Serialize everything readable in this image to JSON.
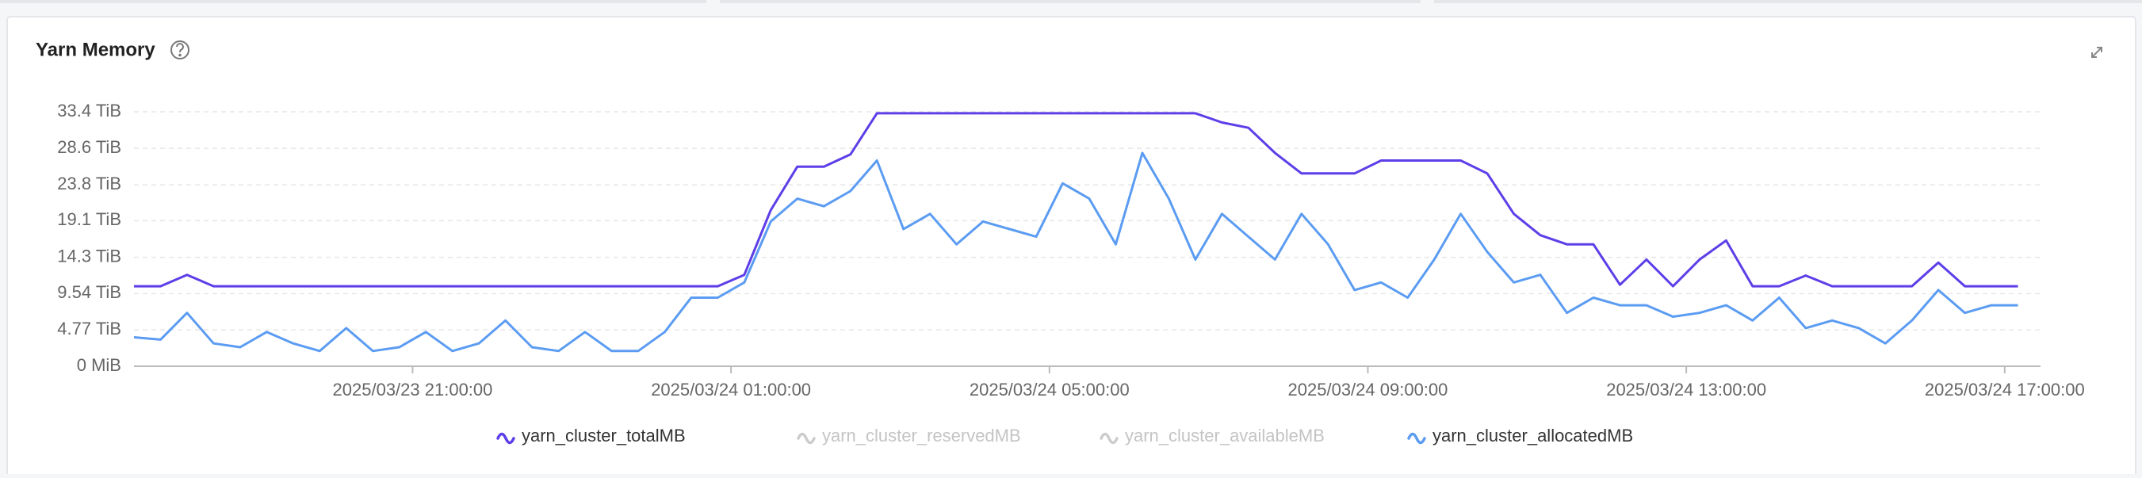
{
  "chart_data": {
    "type": "line",
    "title": "Yarn Memory",
    "x": [
      "2025/03/23 17:30:00",
      "2025/03/23 17:50:00",
      "2025/03/23 18:10:00",
      "2025/03/23 18:30:00",
      "2025/03/23 18:50:00",
      "2025/03/23 19:10:00",
      "2025/03/23 19:30:00",
      "2025/03/23 19:50:00",
      "2025/03/23 20:10:00",
      "2025/03/23 20:30:00",
      "2025/03/23 20:50:00",
      "2025/03/23 21:10:00",
      "2025/03/23 21:30:00",
      "2025/03/23 21:50:00",
      "2025/03/23 22:10:00",
      "2025/03/23 22:30:00",
      "2025/03/23 22:50:00",
      "2025/03/23 23:10:00",
      "2025/03/23 23:30:00",
      "2025/03/23 23:50:00",
      "2025/03/24 00:10:00",
      "2025/03/24 00:30:00",
      "2025/03/24 00:50:00",
      "2025/03/24 01:10:00",
      "2025/03/24 01:30:00",
      "2025/03/24 01:50:00",
      "2025/03/24 02:10:00",
      "2025/03/24 02:30:00",
      "2025/03/24 02:50:00",
      "2025/03/24 03:10:00",
      "2025/03/24 03:30:00",
      "2025/03/24 03:50:00",
      "2025/03/24 04:10:00",
      "2025/03/24 04:30:00",
      "2025/03/24 04:50:00",
      "2025/03/24 05:10:00",
      "2025/03/24 05:30:00",
      "2025/03/24 05:50:00",
      "2025/03/24 06:10:00",
      "2025/03/24 06:30:00",
      "2025/03/24 06:50:00",
      "2025/03/24 07:10:00",
      "2025/03/24 07:30:00",
      "2025/03/24 07:50:00",
      "2025/03/24 08:10:00",
      "2025/03/24 08:30:00",
      "2025/03/24 08:50:00",
      "2025/03/24 09:10:00",
      "2025/03/24 09:30:00",
      "2025/03/24 09:50:00",
      "2025/03/24 10:10:00",
      "2025/03/24 10:30:00",
      "2025/03/24 10:50:00",
      "2025/03/24 11:10:00",
      "2025/03/24 11:30:00",
      "2025/03/24 11:50:00",
      "2025/03/24 12:10:00",
      "2025/03/24 12:30:00",
      "2025/03/24 12:50:00",
      "2025/03/24 13:10:00",
      "2025/03/24 13:30:00",
      "2025/03/24 13:50:00",
      "2025/03/24 14:10:00",
      "2025/03/24 14:30:00",
      "2025/03/24 14:50:00",
      "2025/03/24 15:10:00",
      "2025/03/24 15:30:00",
      "2025/03/24 15:50:00",
      "2025/03/24 16:10:00",
      "2025/03/24 16:30:00",
      "2025/03/24 16:50:00",
      "2025/03/24 17:10:00"
    ],
    "xlim": [
      "2025/03/23 17:30:00",
      "2025/03/24 17:27:00"
    ],
    "xticks": [
      "2025/03/23 21:00:00",
      "2025/03/24 01:00:00",
      "2025/03/24 05:00:00",
      "2025/03/24 09:00:00",
      "2025/03/24 13:00:00",
      "2025/03/24 17:00:00"
    ],
    "ylim": [
      0,
      33.4
    ],
    "yticks": [
      {
        "value": 0,
        "label": "0 MiB"
      },
      {
        "value": 4.77,
        "label": "4.77 TiB"
      },
      {
        "value": 9.54,
        "label": "9.54 TiB"
      },
      {
        "value": 14.3,
        "label": "14.3 TiB"
      },
      {
        "value": 19.1,
        "label": "19.1 TiB"
      },
      {
        "value": 23.8,
        "label": "23.8 TiB"
      },
      {
        "value": 28.6,
        "label": "28.6 TiB"
      },
      {
        "value": 33.4,
        "label": "33.4 TiB"
      }
    ],
    "grid": true,
    "series": [
      {
        "name": "yarn_cluster_totalMB",
        "color": "#5d3ee8",
        "visible": true,
        "values": [
          10.5,
          10.5,
          12,
          10.5,
          10.5,
          10.5,
          10.5,
          10.5,
          10.5,
          10.5,
          10.5,
          10.5,
          10.5,
          10.5,
          10.5,
          10.5,
          10.5,
          10.5,
          10.5,
          10.5,
          10.5,
          10.5,
          10.5,
          12,
          20.5,
          26.2,
          26.2,
          27.8,
          33.2,
          33.2,
          33.2,
          33.2,
          33.2,
          33.2,
          33.2,
          33.2,
          33.2,
          33.2,
          33.2,
          33.2,
          33.2,
          32,
          31.3,
          28,
          25.3,
          25.3,
          25.3,
          27,
          27,
          27,
          27,
          25.3,
          20,
          17.2,
          16,
          16,
          10.7,
          14,
          10.5,
          14,
          16.5,
          10.5,
          10.5,
          11.9,
          10.5,
          10.5,
          10.5,
          10.5,
          13.6,
          10.5,
          10.5,
          10.5
        ]
      },
      {
        "name": "yarn_cluster_reservedMB",
        "color": "#cccccc",
        "visible": false,
        "values": [
          null,
          null,
          null,
          null,
          null,
          null,
          null,
          null,
          null,
          null,
          null,
          null,
          null,
          null,
          null,
          null,
          null,
          null,
          null,
          null,
          null,
          null,
          null,
          null,
          null,
          null,
          null,
          null,
          null,
          null,
          null,
          null,
          null,
          null,
          null,
          null,
          null,
          null,
          null,
          null,
          null,
          null,
          null,
          null,
          null,
          null,
          null,
          null,
          null,
          null,
          null,
          null,
          null,
          null,
          null,
          null,
          null,
          null,
          null,
          null,
          null,
          null,
          null,
          null,
          null,
          null,
          null,
          null,
          null,
          null,
          null,
          null
        ]
      },
      {
        "name": "yarn_cluster_availableMB",
        "color": "#cccccc",
        "visible": false,
        "values": [
          null,
          null,
          null,
          null,
          null,
          null,
          null,
          null,
          null,
          null,
          null,
          null,
          null,
          null,
          null,
          null,
          null,
          null,
          null,
          null,
          null,
          null,
          null,
          null,
          null,
          null,
          null,
          null,
          null,
          null,
          null,
          null,
          null,
          null,
          null,
          null,
          null,
          null,
          null,
          null,
          null,
          null,
          null,
          null,
          null,
          null,
          null,
          null,
          null,
          null,
          null,
          null,
          null,
          null,
          null,
          null,
          null,
          null,
          null,
          null,
          null,
          null,
          null,
          null,
          null,
          null,
          null,
          null,
          null,
          null,
          null,
          null
        ]
      },
      {
        "name": "yarn_cluster_allocatedMB",
        "color": "#5b9cf2",
        "visible": true,
        "values": [
          3.8,
          3.5,
          7,
          3,
          2.5,
          4.5,
          3,
          2,
          5,
          2,
          2.5,
          4.5,
          2,
          3,
          6,
          2.5,
          2,
          4.5,
          2,
          2,
          4.5,
          9,
          9,
          11,
          19,
          22,
          21,
          23,
          27,
          18,
          20,
          16,
          19,
          18,
          17,
          24,
          22,
          16,
          28,
          22,
          14,
          20,
          17,
          14,
          20,
          16,
          10,
          11,
          9,
          14,
          20,
          15,
          11,
          12,
          7,
          9,
          8,
          8,
          6.5,
          7,
          8,
          6,
          9,
          5,
          6,
          5,
          3,
          6,
          10,
          7,
          8,
          8
        ]
      }
    ]
  }
}
